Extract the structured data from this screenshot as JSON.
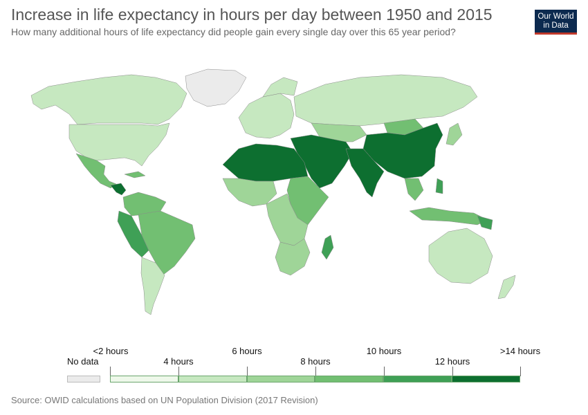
{
  "header": {
    "title": "Increase in life expectancy in hours per day between 1950 and 2015",
    "subtitle": "How many additional hours of life expectancy did people gain every single day over this 65 year period?"
  },
  "logo": {
    "line1": "Our World",
    "line2": "in Data"
  },
  "legend": {
    "no_data_label": "No data",
    "no_data_color": "#ebebeb",
    "upper_labels": [
      "<2 hours",
      "6 hours",
      "10 hours",
      ">14 hours"
    ],
    "lower_labels": [
      "4 hours",
      "8 hours",
      "12 hours"
    ],
    "bins": [
      "#eef8ea",
      "#c6e8c0",
      "#9fd598",
      "#72bf72",
      "#3fa056",
      "#0d6f30"
    ]
  },
  "source": "Source: OWID calculations based on UN Population Division (2017 Revision)"
}
